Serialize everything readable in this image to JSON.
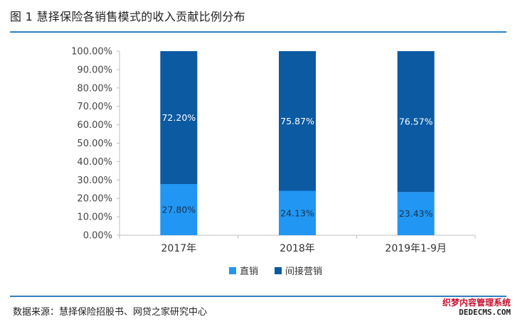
{
  "header": {
    "title": "图 1 慧择保险各销售模式的收入贡献比例分布"
  },
  "footer": {
    "source": "数据来源：慧择保险招股书、网贷之家研究中心"
  },
  "watermark": {
    "line1": "织梦内容管理系统",
    "line2": "DEDECMS.COM"
  },
  "colors": {
    "direct": "#2196f3",
    "indirect": "#0b5aa2",
    "rule": "#2f7fc1"
  },
  "chart_data": {
    "type": "bar",
    "stacked": true,
    "categories": [
      "2017年",
      "2018年",
      "2019年1-9月"
    ],
    "series": [
      {
        "name": "直销",
        "values": [
          27.8,
          24.13,
          23.43
        ],
        "labels": [
          "27.80%",
          "24.13%",
          "23.43%"
        ]
      },
      {
        "name": "间接营销",
        "values": [
          72.2,
          75.87,
          76.57
        ],
        "labels": [
          "72.20%",
          "75.87%",
          "76.57%"
        ]
      }
    ],
    "ylim": [
      0,
      100
    ],
    "yticks": [
      "0.00%",
      "10.00%",
      "20.00%",
      "30.00%",
      "40.00%",
      "50.00%",
      "60.00%",
      "70.00%",
      "80.00%",
      "90.00%",
      "100.00%"
    ],
    "legend_position": "bottom",
    "grid": false
  }
}
